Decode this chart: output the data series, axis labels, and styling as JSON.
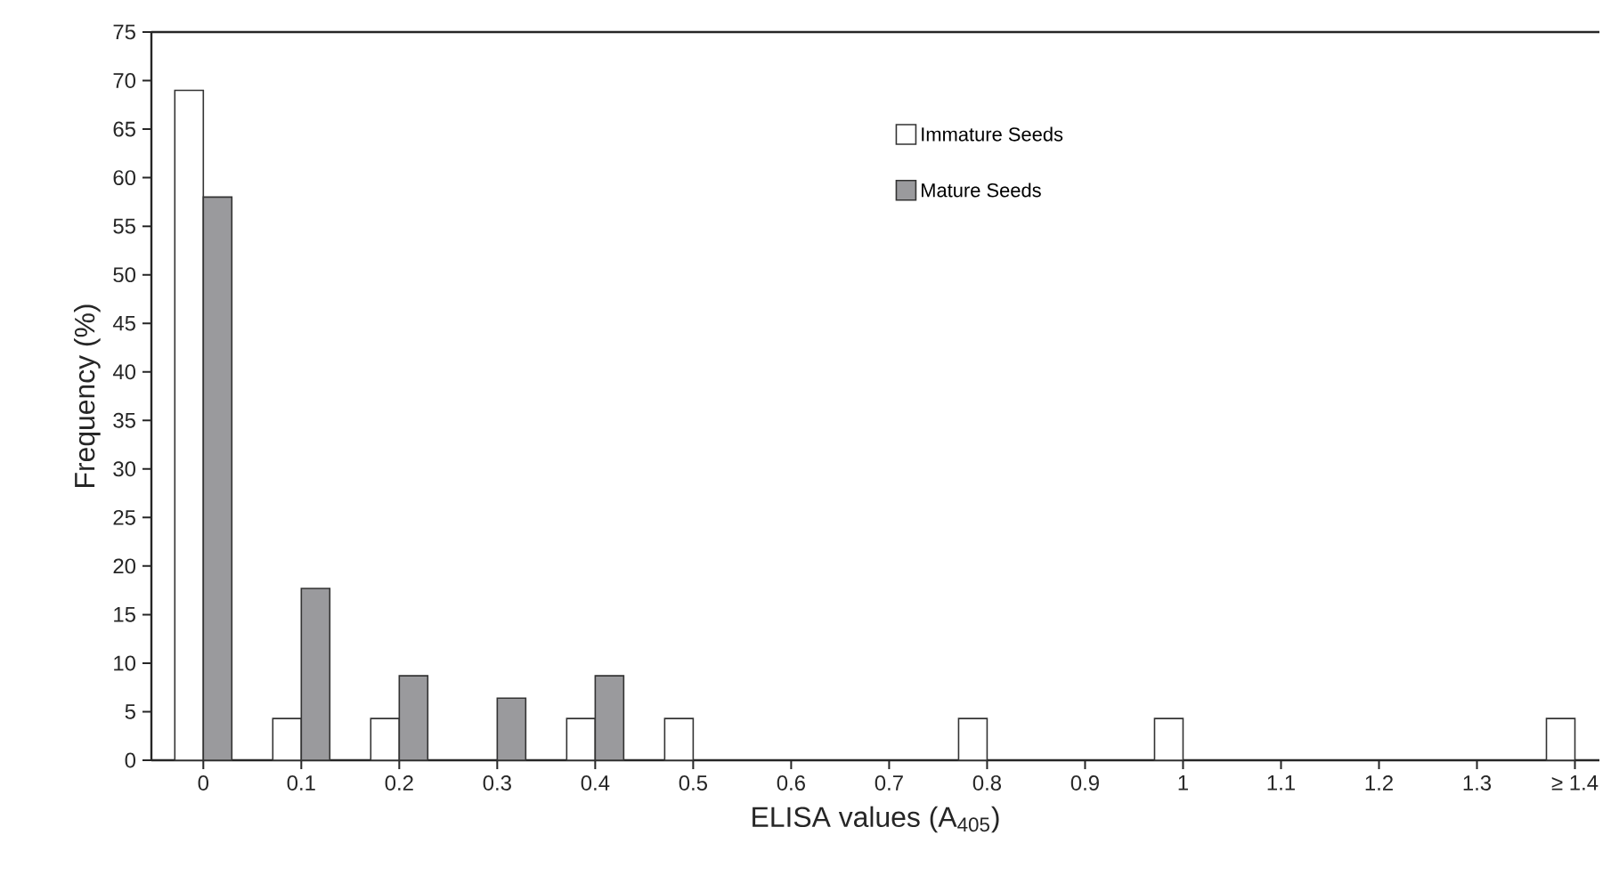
{
  "chart_data": {
    "type": "bar",
    "xlabel": "ELISA values (A$_{405}$)",
    "ylabel": "Frequency (%)",
    "categories": [
      "0",
      "0.1",
      "0.2",
      "0.3",
      "0.4",
      "0.5",
      "0.6",
      "0.7",
      "0.8",
      "0.9",
      "1",
      "1.1",
      "1.2",
      "1.3",
      "≥ 1.4"
    ],
    "series": [
      {
        "name": "Immature Seeds",
        "color": "#ffffff",
        "values": [
          69,
          4.3,
          4.3,
          null,
          4.3,
          4.3,
          null,
          null,
          4.3,
          null,
          4.3,
          null,
          null,
          null,
          4.3
        ]
      },
      {
        "name": "Mature Seeds",
        "color": "#9a9a9d",
        "values": [
          58,
          17.7,
          8.7,
          6.4,
          8.7,
          null,
          null,
          null,
          null,
          null,
          null,
          null,
          null,
          null,
          null
        ]
      }
    ],
    "ylim": [
      0,
      75
    ],
    "yticks": [
      0,
      5,
      10,
      15,
      20,
      25,
      30,
      35,
      40,
      45,
      50,
      55,
      60,
      65,
      70,
      75
    ],
    "legend": "top right"
  }
}
